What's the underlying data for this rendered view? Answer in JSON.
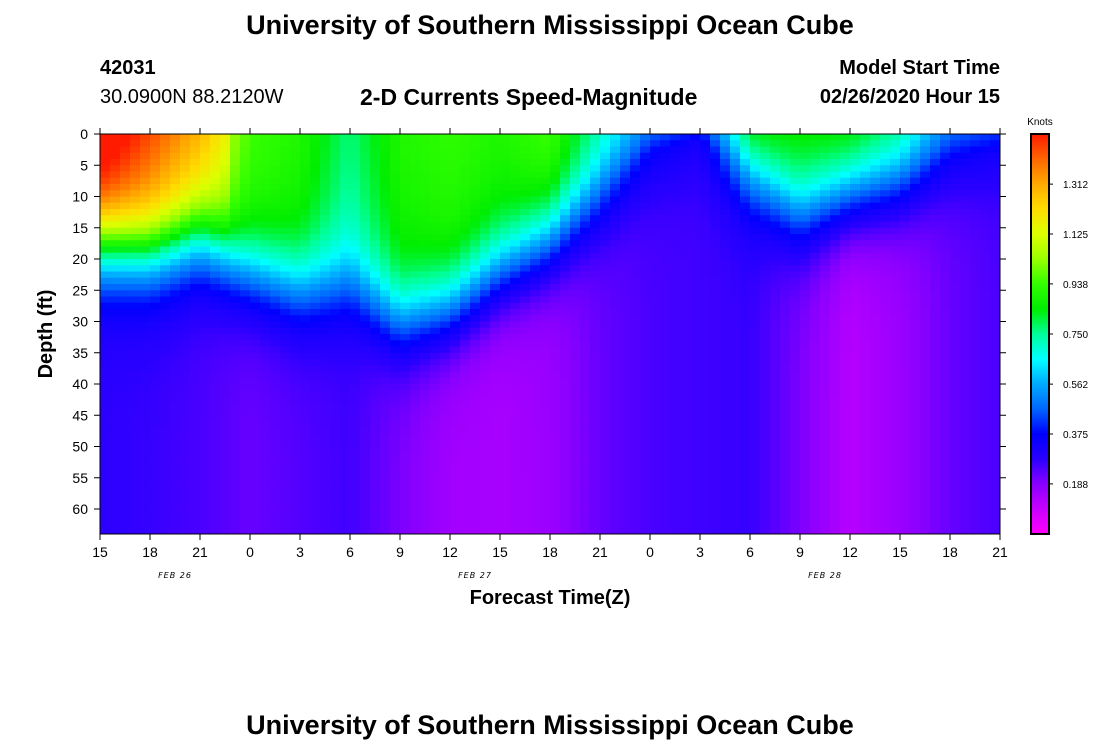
{
  "page": {
    "title_top": "University of Southern Mississippi Ocean Cube",
    "title_bottom": "University of Southern Mississippi Ocean Cube",
    "station_id": "42031",
    "location": "30.0900N 88.2120W",
    "product": "2-D Currents Speed-Magnitude",
    "model_start_label": "Model Start Time",
    "model_start_value": "02/26/2020 Hour 15"
  },
  "colors": {
    "scale": [
      "#ff00ff",
      "#c800ff",
      "#8800ff",
      "#2a00ff",
      "#0000ff",
      "#0066ff",
      "#00aaff",
      "#00ffff",
      "#00ff99",
      "#00ee00",
      "#33ff00",
      "#99ff00",
      "#ddff00",
      "#ffdd00",
      "#ffaa00",
      "#ff6600",
      "#ff1a00"
    ],
    "frame": "#000000"
  },
  "chart_data": {
    "type": "heatmap",
    "title": "2-D Currents Speed-Magnitude",
    "xlabel": "Forecast Time(Z)",
    "ylabel": "Depth (ft)",
    "colorbar_unit": "Knots",
    "colorbar_ticks": [
      "0.188",
      "0.375",
      "0.562",
      "0.750",
      "0.938",
      "1.125",
      "1.312"
    ],
    "colorbar_range": [
      0,
      1.5
    ],
    "x_tick_labels": [
      "15",
      "18",
      "21",
      "0",
      "3",
      "6",
      "9",
      "12",
      "15",
      "18",
      "21",
      "0",
      "3",
      "6",
      "9",
      "12",
      "15",
      "18",
      "21"
    ],
    "x_date_labels": [
      {
        "label": "FEB 26",
        "index": 1
      },
      {
        "label": "FEB 27",
        "index": 7
      },
      {
        "label": "FEB 28",
        "index": 14
      }
    ],
    "y_tick_labels": [
      "0",
      "5",
      "10",
      "15",
      "20",
      "25",
      "30",
      "35",
      "40",
      "45",
      "50",
      "55",
      "60"
    ],
    "y_range": [
      0,
      64
    ],
    "x_range_hours": [
      0,
      54
    ],
    "depth_profile": [
      {
        "hour": 0,
        "surface_speed": 1.45,
        "mixed_layer_ft": 18,
        "deep_speed": 0.28
      },
      {
        "hour": 3,
        "surface_speed": 1.3,
        "mixed_layer_ft": 19,
        "deep_speed": 0.27
      },
      {
        "hour": 6,
        "surface_speed": 1.15,
        "mixed_layer_ft": 17,
        "deep_speed": 0.25
      },
      {
        "hour": 9,
        "surface_speed": 0.9,
        "mixed_layer_ft": 22,
        "deep_speed": 0.22
      },
      {
        "hour": 12,
        "surface_speed": 0.85,
        "mixed_layer_ft": 25,
        "deep_speed": 0.24
      },
      {
        "hour": 15,
        "surface_speed": 0.72,
        "mixed_layer_ft": 24,
        "deep_speed": 0.26
      },
      {
        "hour": 18,
        "surface_speed": 0.85,
        "mixed_layer_ft": 30,
        "deep_speed": 0.2
      },
      {
        "hour": 21,
        "surface_speed": 0.88,
        "mixed_layer_ft": 28,
        "deep_speed": 0.15
      },
      {
        "hour": 24,
        "surface_speed": 0.85,
        "mixed_layer_ft": 22,
        "deep_speed": 0.14
      },
      {
        "hour": 27,
        "surface_speed": 0.9,
        "mixed_layer_ft": 17,
        "deep_speed": 0.16
      },
      {
        "hour": 30,
        "surface_speed": 0.7,
        "mixed_layer_ft": 10,
        "deep_speed": 0.22
      },
      {
        "hour": 33,
        "surface_speed": 0.5,
        "mixed_layer_ft": 3,
        "deep_speed": 0.25
      },
      {
        "hour": 36,
        "surface_speed": 0.4,
        "mixed_layer_ft": 1,
        "deep_speed": 0.26
      },
      {
        "hour": 39,
        "surface_speed": 0.85,
        "mixed_layer_ft": 7,
        "deep_speed": 0.27
      },
      {
        "hour": 42,
        "surface_speed": 0.82,
        "mixed_layer_ft": 13,
        "deep_speed": 0.2
      },
      {
        "hour": 45,
        "surface_speed": 0.84,
        "mixed_layer_ft": 10,
        "deep_speed": 0.12
      },
      {
        "hour": 48,
        "surface_speed": 0.75,
        "mixed_layer_ft": 8,
        "deep_speed": 0.16
      },
      {
        "hour": 51,
        "surface_speed": 0.5,
        "mixed_layer_ft": 4,
        "deep_speed": 0.22
      },
      {
        "hour": 54,
        "surface_speed": 0.42,
        "mixed_layer_ft": 3,
        "deep_speed": 0.25
      }
    ]
  }
}
